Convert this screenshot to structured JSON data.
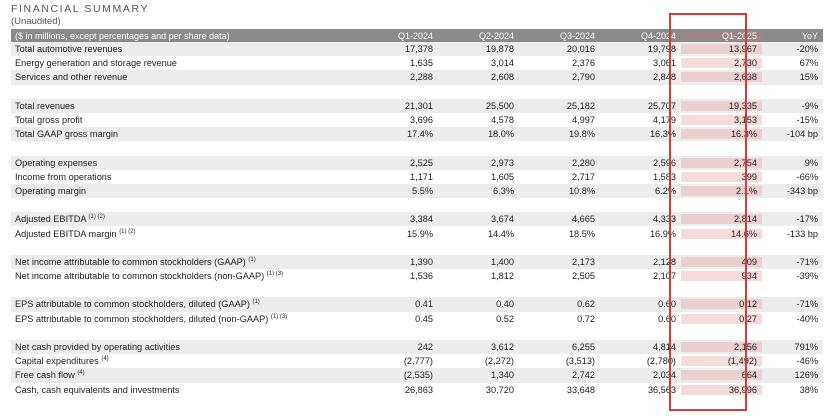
{
  "title": "FINANCIAL SUMMARY",
  "subtitle": "(Unaudited)",
  "header": {
    "label": "($ in millions, except percentages and per share data)",
    "columns": [
      "Q1-2024",
      "Q2-2024",
      "Q3-2024",
      "Q4-2024",
      "Q1-2025",
      "YoY"
    ]
  },
  "highlight_color": "#d63b3b",
  "rows": [
    {
      "label": "Total automotive revenues",
      "values": [
        "17,378",
        "19,878",
        "20,016",
        "19,798",
        "13,967",
        "-20%"
      ]
    },
    {
      "label": "Energy generation and storage revenue",
      "values": [
        "1,635",
        "3,014",
        "2,376",
        "3,061",
        "2,730",
        "67%"
      ]
    },
    {
      "label": "Services and other revenue",
      "values": [
        "2,288",
        "2,608",
        "2,790",
        "2,848",
        "2,638",
        "15%"
      ]
    },
    {
      "label": "Total revenues",
      "values": [
        "21,301",
        "25,500",
        "25,182",
        "25,707",
        "19,335",
        "-9%"
      ]
    },
    {
      "label": "Total gross profit",
      "values": [
        "3,696",
        "4,578",
        "4,997",
        "4,179",
        "3,153",
        "-15%"
      ]
    },
    {
      "label": "Total GAAP gross margin",
      "values": [
        "17.4%",
        "18.0%",
        "19.8%",
        "16.3%",
        "16.3%",
        "-104 bp"
      ]
    },
    {
      "label": "Operating expenses",
      "values": [
        "2,525",
        "2,973",
        "2,280",
        "2,596",
        "2,754",
        "9%"
      ]
    },
    {
      "label": "Income from operations",
      "values": [
        "1,171",
        "1,605",
        "2,717",
        "1,583",
        "399",
        "-66%"
      ]
    },
    {
      "label": "Operating margin",
      "values": [
        "5.5%",
        "6.3%",
        "10.8%",
        "6.2%",
        "2.1%",
        "-343 bp"
      ]
    },
    {
      "label": "Adjusted EBITDA",
      "sup": "(1) (2)",
      "values": [
        "3,384",
        "3,674",
        "4,665",
        "4,333",
        "2,814",
        "-17%"
      ]
    },
    {
      "label": "Adjusted EBITDA margin",
      "sup": "(1) (2)",
      "values": [
        "15.9%",
        "14.4%",
        "18.5%",
        "16.9%",
        "14.6%",
        "-133 bp"
      ]
    },
    {
      "label": "Net income attributable to common stockholders (GAAP)",
      "sup": "(1)",
      "values": [
        "1,390",
        "1,400",
        "2,173",
        "2,128",
        "409",
        "-71%"
      ]
    },
    {
      "label": "Net income attributable to common stockholders (non-GAAP)",
      "sup": "(1) (3)",
      "values": [
        "1,536",
        "1,812",
        "2,505",
        "2,107",
        "934",
        "-39%"
      ]
    },
    {
      "label": "EPS attributable to common stockholders, diluted (GAAP)",
      "sup": "(1)",
      "values": [
        "0.41",
        "0.40",
        "0.62",
        "0.60",
        "0.12",
        "-71%"
      ]
    },
    {
      "label": "EPS attributable to common stockholders, diluted (non-GAAP)",
      "sup": "(1) (3)",
      "values": [
        "0.45",
        "0.52",
        "0.72",
        "0.60",
        "0.27",
        "-40%"
      ]
    },
    {
      "label": "Net cash provided by operating activities",
      "values": [
        "242",
        "3,612",
        "6,255",
        "4,814",
        "2,156",
        "791%"
      ]
    },
    {
      "label": "Capital expenditures",
      "sup": "(4)",
      "values": [
        "(2,777)",
        "(2,272)",
        "(3,513)",
        "(2,780)",
        "(1,492)",
        "-46%"
      ]
    },
    {
      "label": "Free cash flow",
      "sup": "(4)",
      "values": [
        "(2,535)",
        "1,340",
        "2,742",
        "2,034",
        "664",
        "126%"
      ]
    },
    {
      "label": "Cash, cash equivalents and investments",
      "values": [
        "26,863",
        "30,720",
        "33,648",
        "36,563",
        "36,996",
        "38%"
      ]
    }
  ]
}
